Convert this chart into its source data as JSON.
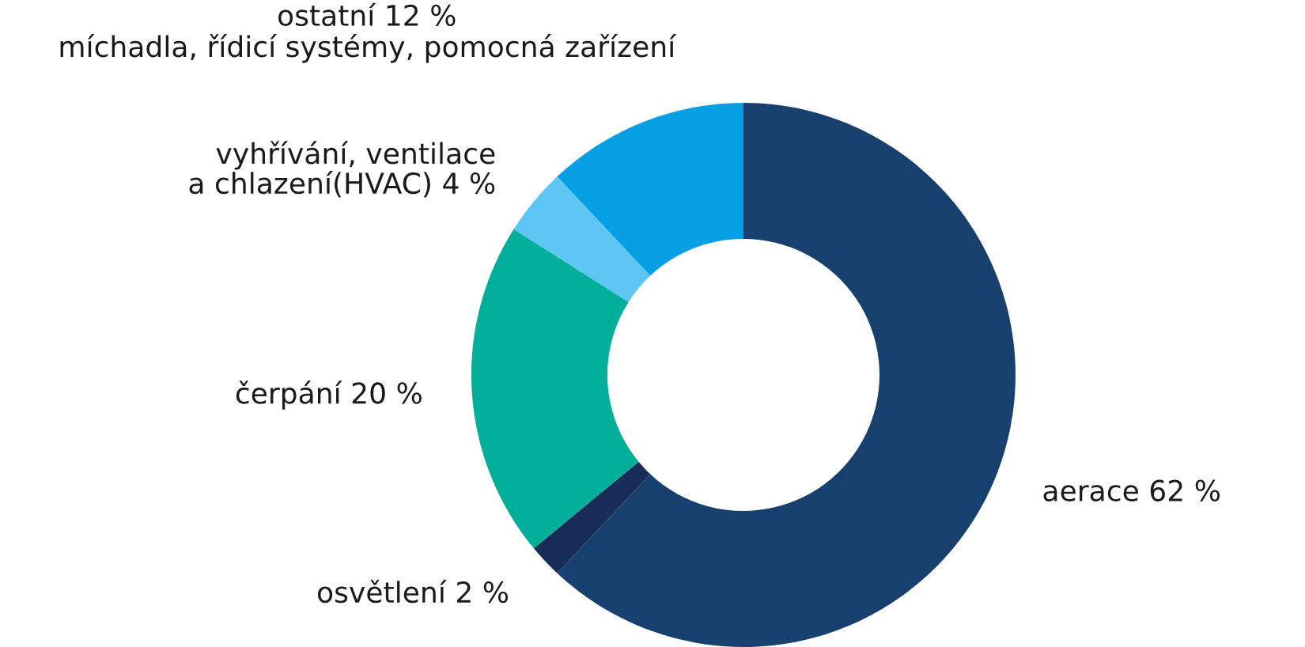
{
  "chart_data": {
    "type": "donut",
    "categories": [
      "aerace 62 %",
      "osvětlení 2 %",
      "čerpání 20 %",
      "vyhřívání, ventilace\na chlazení(HVAC) 4 %",
      "ostatní 12 %\nmíchadla, řídicí systémy, pomocná zařízení"
    ],
    "values": [
      62,
      2,
      20,
      4,
      12
    ],
    "colors": [
      "#17406f",
      "#172d57",
      "#00af9a",
      "#5ec6f2",
      "#04a0e3"
    ]
  }
}
